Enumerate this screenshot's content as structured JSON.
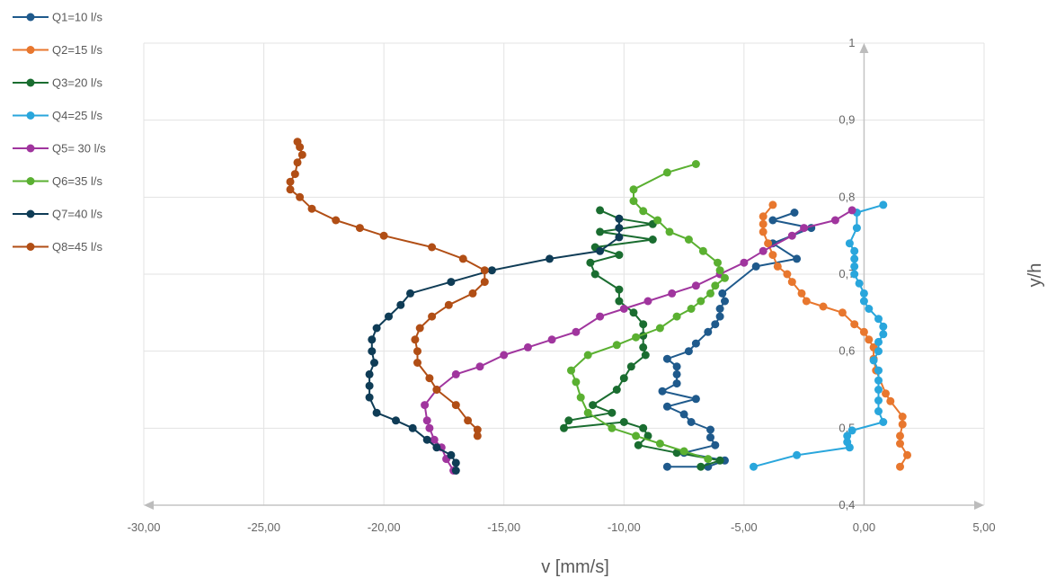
{
  "chart_data": {
    "type": "scatter",
    "xlabel": "v [mm/s]",
    "ylabel": "y/h",
    "xlim": [
      -30,
      5
    ],
    "ylim": [
      0.4,
      1.0
    ],
    "x_ticks": [
      "-30,00",
      "-25,00",
      "-20,00",
      "-15,00",
      "-10,00",
      "-5,00",
      "0,00",
      "5,00"
    ],
    "y_ticks": [
      "0,4",
      "0,5",
      "0,6",
      "0,7",
      "0,8",
      "0,9",
      "1"
    ],
    "grid": true,
    "legend_position": "top-left",
    "series": [
      {
        "name": "Q1=10 l/s",
        "color": "#1f5a8c",
        "points": [
          [
            -8.2,
            0.45
          ],
          [
            -6.5,
            0.45
          ],
          [
            -5.8,
            0.458
          ],
          [
            -7.5,
            0.468
          ],
          [
            -6.2,
            0.478
          ],
          [
            -6.4,
            0.488
          ],
          [
            -6.4,
            0.498
          ],
          [
            -7.2,
            0.508
          ],
          [
            -7.5,
            0.518
          ],
          [
            -8.2,
            0.528
          ],
          [
            -7.0,
            0.538
          ],
          [
            -8.4,
            0.548
          ],
          [
            -7.8,
            0.558
          ],
          [
            -7.8,
            0.57
          ],
          [
            -7.8,
            0.58
          ],
          [
            -8.2,
            0.59
          ],
          [
            -7.3,
            0.6
          ],
          [
            -7.0,
            0.61
          ],
          [
            -6.5,
            0.625
          ],
          [
            -6.2,
            0.635
          ],
          [
            -6.0,
            0.645
          ],
          [
            -6.0,
            0.655
          ],
          [
            -5.8,
            0.665
          ],
          [
            -5.9,
            0.675
          ],
          [
            -4.5,
            0.71
          ],
          [
            -2.8,
            0.72
          ],
          [
            -3.8,
            0.74
          ],
          [
            -2.2,
            0.76
          ],
          [
            -3.8,
            0.77
          ],
          [
            -2.9,
            0.78
          ]
        ]
      },
      {
        "name": "Q2=15 l/s",
        "color": "#e8772e",
        "points": [
          [
            1.5,
            0.45
          ],
          [
            1.8,
            0.465
          ],
          [
            1.5,
            0.48
          ],
          [
            1.5,
            0.49
          ],
          [
            1.6,
            0.505
          ],
          [
            1.6,
            0.515
          ],
          [
            1.1,
            0.535
          ],
          [
            0.9,
            0.545
          ],
          [
            0.5,
            0.575
          ],
          [
            0.4,
            0.59
          ],
          [
            0.4,
            0.605
          ],
          [
            0.2,
            0.615
          ],
          [
            0.0,
            0.625
          ],
          [
            -0.4,
            0.635
          ],
          [
            -0.9,
            0.65
          ],
          [
            -1.7,
            0.658
          ],
          [
            -2.4,
            0.665
          ],
          [
            -2.6,
            0.675
          ],
          [
            -3.0,
            0.69
          ],
          [
            -3.2,
            0.7
          ],
          [
            -3.6,
            0.71
          ],
          [
            -3.8,
            0.725
          ],
          [
            -4.0,
            0.74
          ],
          [
            -4.2,
            0.755
          ],
          [
            -4.2,
            0.765
          ],
          [
            -4.2,
            0.775
          ],
          [
            -3.8,
            0.79
          ]
        ]
      },
      {
        "name": "Q3=20 l/s",
        "color": "#1a6d30",
        "points": [
          [
            -6.8,
            0.45
          ],
          [
            -6.0,
            0.458
          ],
          [
            -7.8,
            0.468
          ],
          [
            -9.4,
            0.478
          ],
          [
            -9.0,
            0.49
          ],
          [
            -9.2,
            0.5
          ],
          [
            -10.0,
            0.508
          ],
          [
            -12.5,
            0.5
          ],
          [
            -12.3,
            0.51
          ],
          [
            -10.5,
            0.52
          ],
          [
            -11.3,
            0.53
          ],
          [
            -10.3,
            0.55
          ],
          [
            -10.0,
            0.565
          ],
          [
            -9.7,
            0.58
          ],
          [
            -9.1,
            0.595
          ],
          [
            -9.2,
            0.605
          ],
          [
            -9.2,
            0.62
          ],
          [
            -9.2,
            0.635
          ],
          [
            -9.6,
            0.65
          ],
          [
            -10.2,
            0.665
          ],
          [
            -10.2,
            0.68
          ],
          [
            -11.2,
            0.7
          ],
          [
            -11.4,
            0.715
          ],
          [
            -10.2,
            0.725
          ],
          [
            -11.2,
            0.735
          ],
          [
            -8.8,
            0.745
          ],
          [
            -11.0,
            0.755
          ],
          [
            -8.8,
            0.765
          ],
          [
            -10.2,
            0.772
          ],
          [
            -11.0,
            0.783
          ]
        ]
      },
      {
        "name": "Q4=25 l/s",
        "color": "#29a6dc",
        "points": [
          [
            -4.6,
            0.45
          ],
          [
            -2.8,
            0.465
          ],
          [
            -0.6,
            0.475
          ],
          [
            -0.7,
            0.482
          ],
          [
            -0.7,
            0.49
          ],
          [
            -0.5,
            0.497
          ],
          [
            0.8,
            0.508
          ],
          [
            0.6,
            0.522
          ],
          [
            0.6,
            0.536
          ],
          [
            0.6,
            0.55
          ],
          [
            0.6,
            0.562
          ],
          [
            0.6,
            0.575
          ],
          [
            0.4,
            0.588
          ],
          [
            0.6,
            0.6
          ],
          [
            0.6,
            0.612
          ],
          [
            0.8,
            0.622
          ],
          [
            0.8,
            0.632
          ],
          [
            0.6,
            0.642
          ],
          [
            0.2,
            0.655
          ],
          [
            0.0,
            0.665
          ],
          [
            0.0,
            0.675
          ],
          [
            -0.2,
            0.688
          ],
          [
            -0.4,
            0.7
          ],
          [
            -0.4,
            0.71
          ],
          [
            -0.4,
            0.72
          ],
          [
            -0.4,
            0.73
          ],
          [
            -0.6,
            0.74
          ],
          [
            -0.3,
            0.76
          ],
          [
            -0.3,
            0.78
          ],
          [
            0.8,
            0.79
          ]
        ]
      },
      {
        "name": "Q5= 30 l/s",
        "color": "#a0359e",
        "points": [
          [
            -17.1,
            0.445
          ],
          [
            -17.4,
            0.46
          ],
          [
            -17.6,
            0.475
          ],
          [
            -17.9,
            0.485
          ],
          [
            -18.1,
            0.5
          ],
          [
            -18.2,
            0.51
          ],
          [
            -18.3,
            0.53
          ],
          [
            -17.8,
            0.55
          ],
          [
            -17.0,
            0.57
          ],
          [
            -16.0,
            0.58
          ],
          [
            -15.0,
            0.595
          ],
          [
            -14.0,
            0.605
          ],
          [
            -13.0,
            0.615
          ],
          [
            -12.0,
            0.625
          ],
          [
            -11.0,
            0.645
          ],
          [
            -10.0,
            0.655
          ],
          [
            -9.0,
            0.665
          ],
          [
            -8.0,
            0.675
          ],
          [
            -7.0,
            0.685
          ],
          [
            -6.0,
            0.7
          ],
          [
            -5.0,
            0.715
          ],
          [
            -4.2,
            0.73
          ],
          [
            -3.0,
            0.75
          ],
          [
            -2.5,
            0.76
          ],
          [
            -1.2,
            0.77
          ],
          [
            -0.5,
            0.783
          ]
        ]
      },
      {
        "name": "Q6=35 l/s",
        "color": "#5ab031",
        "points": [
          [
            -6.5,
            0.46
          ],
          [
            -7.5,
            0.47
          ],
          [
            -8.5,
            0.48
          ],
          [
            -9.5,
            0.49
          ],
          [
            -10.5,
            0.5
          ],
          [
            -11.5,
            0.52
          ],
          [
            -11.8,
            0.54
          ],
          [
            -12.0,
            0.56
          ],
          [
            -12.2,
            0.575
          ],
          [
            -11.5,
            0.595
          ],
          [
            -10.3,
            0.608
          ],
          [
            -9.5,
            0.618
          ],
          [
            -8.5,
            0.63
          ],
          [
            -7.8,
            0.645
          ],
          [
            -7.2,
            0.655
          ],
          [
            -6.8,
            0.665
          ],
          [
            -6.4,
            0.675
          ],
          [
            -6.2,
            0.685
          ],
          [
            -5.8,
            0.695
          ],
          [
            -6.0,
            0.705
          ],
          [
            -6.1,
            0.715
          ],
          [
            -6.7,
            0.73
          ],
          [
            -7.3,
            0.745
          ],
          [
            -8.1,
            0.755
          ],
          [
            -8.6,
            0.77
          ],
          [
            -9.2,
            0.782
          ],
          [
            -9.6,
            0.795
          ],
          [
            -9.6,
            0.81
          ],
          [
            -8.2,
            0.832
          ],
          [
            -7.0,
            0.843
          ]
        ]
      },
      {
        "name": "Q7=40 l/s",
        "color": "#0f3c56",
        "points": [
          [
            -17.0,
            0.445
          ],
          [
            -17.0,
            0.455
          ],
          [
            -17.2,
            0.465
          ],
          [
            -17.8,
            0.475
          ],
          [
            -18.2,
            0.485
          ],
          [
            -18.8,
            0.5
          ],
          [
            -19.5,
            0.51
          ],
          [
            -20.3,
            0.52
          ],
          [
            -20.6,
            0.54
          ],
          [
            -20.6,
            0.555
          ],
          [
            -20.6,
            0.57
          ],
          [
            -20.4,
            0.585
          ],
          [
            -20.5,
            0.6
          ],
          [
            -20.5,
            0.615
          ],
          [
            -20.3,
            0.63
          ],
          [
            -19.8,
            0.645
          ],
          [
            -19.3,
            0.66
          ],
          [
            -18.9,
            0.675
          ],
          [
            -17.2,
            0.69
          ],
          [
            -15.5,
            0.705
          ],
          [
            -13.1,
            0.72
          ],
          [
            -11.0,
            0.73
          ],
          [
            -10.2,
            0.748
          ],
          [
            -10.2,
            0.76
          ],
          [
            -10.2,
            0.772
          ]
        ]
      },
      {
        "name": "Q8=45 l/s",
        "color": "#b14e15",
        "points": [
          [
            -16.1,
            0.49
          ],
          [
            -16.1,
            0.498
          ],
          [
            -16.5,
            0.51
          ],
          [
            -17.0,
            0.53
          ],
          [
            -17.8,
            0.55
          ],
          [
            -18.1,
            0.565
          ],
          [
            -18.6,
            0.585
          ],
          [
            -18.6,
            0.6
          ],
          [
            -18.7,
            0.615
          ],
          [
            -18.5,
            0.63
          ],
          [
            -18.0,
            0.645
          ],
          [
            -17.3,
            0.66
          ],
          [
            -16.3,
            0.675
          ],
          [
            -15.8,
            0.69
          ],
          [
            -15.8,
            0.705
          ],
          [
            -16.7,
            0.72
          ],
          [
            -18.0,
            0.735
          ],
          [
            -20.0,
            0.75
          ],
          [
            -21.0,
            0.76
          ],
          [
            -22.0,
            0.77
          ],
          [
            -23.0,
            0.785
          ],
          [
            -23.5,
            0.8
          ],
          [
            -23.9,
            0.81
          ],
          [
            -23.9,
            0.82
          ],
          [
            -23.7,
            0.83
          ],
          [
            -23.6,
            0.845
          ],
          [
            -23.4,
            0.855
          ],
          [
            -23.5,
            0.865
          ],
          [
            -23.6,
            0.872
          ]
        ]
      }
    ]
  }
}
